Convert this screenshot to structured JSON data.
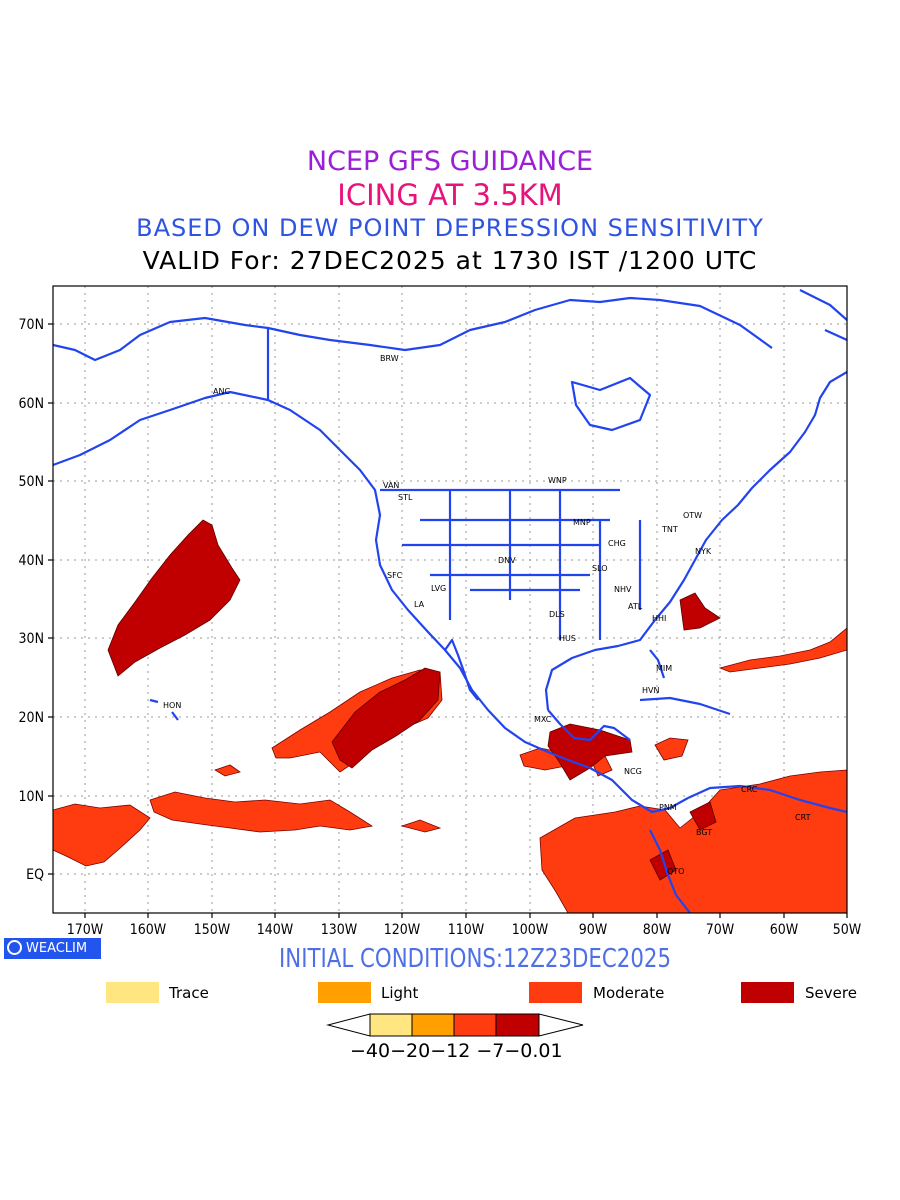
{
  "header": {
    "line1": "NCEP GFS GUIDANCE",
    "line2": "ICING AT 3.5KM",
    "line3": "BASED ON DEW POINT DEPRESSION SENSITIVITY",
    "line4": "VALID For: 27DEC2025 at 1730 IST /1200 UTC"
  },
  "axes": {
    "lat_labels": [
      "70N",
      "60N",
      "50N",
      "40N",
      "30N",
      "20N",
      "10N",
      "EQ"
    ],
    "lon_labels": [
      "170W",
      "160W",
      "150W",
      "140W",
      "130W",
      "120W",
      "110W",
      "100W",
      "90W",
      "80W",
      "70W",
      "60W",
      "50W"
    ],
    "lat_range": [
      -5,
      75
    ],
    "lon_range": [
      -175,
      -50
    ]
  },
  "stations": [
    "BRW",
    "ANC",
    "VAN",
    "STL",
    "WNP",
    "MNP",
    "OTW",
    "TNT",
    "NYK",
    "CHG",
    "DNV",
    "SFC",
    "LVG",
    "SLO",
    "LA",
    "NHV",
    "ATL",
    "DLS",
    "HHI",
    "HUS",
    "MIM",
    "HVN",
    "HON",
    "MXC",
    "NCG",
    "CRC",
    "PNM",
    "BGT",
    "CRT",
    "QTO"
  ],
  "branding": {
    "logo_text": "WEACLIM"
  },
  "footer": {
    "initial_conditions": "INITIAL CONDITIONS:12Z23DEC2025"
  },
  "legend": [
    {
      "label": "Trace",
      "color": "#ffe680"
    },
    {
      "label": "Light",
      "color": "#ffa000"
    },
    {
      "label": "Moderate",
      "color": "#ff3c10"
    },
    {
      "label": "Severe",
      "color": "#c00000"
    }
  ],
  "colorbar": {
    "labels": "−40−20−12 −7−0.01",
    "colors": [
      "#ffe680",
      "#ffa000",
      "#ff3c10",
      "#c00000"
    ]
  },
  "colors": {
    "coast": "#2244ee",
    "moderate": "#ff3c10",
    "severe": "#c00000"
  }
}
